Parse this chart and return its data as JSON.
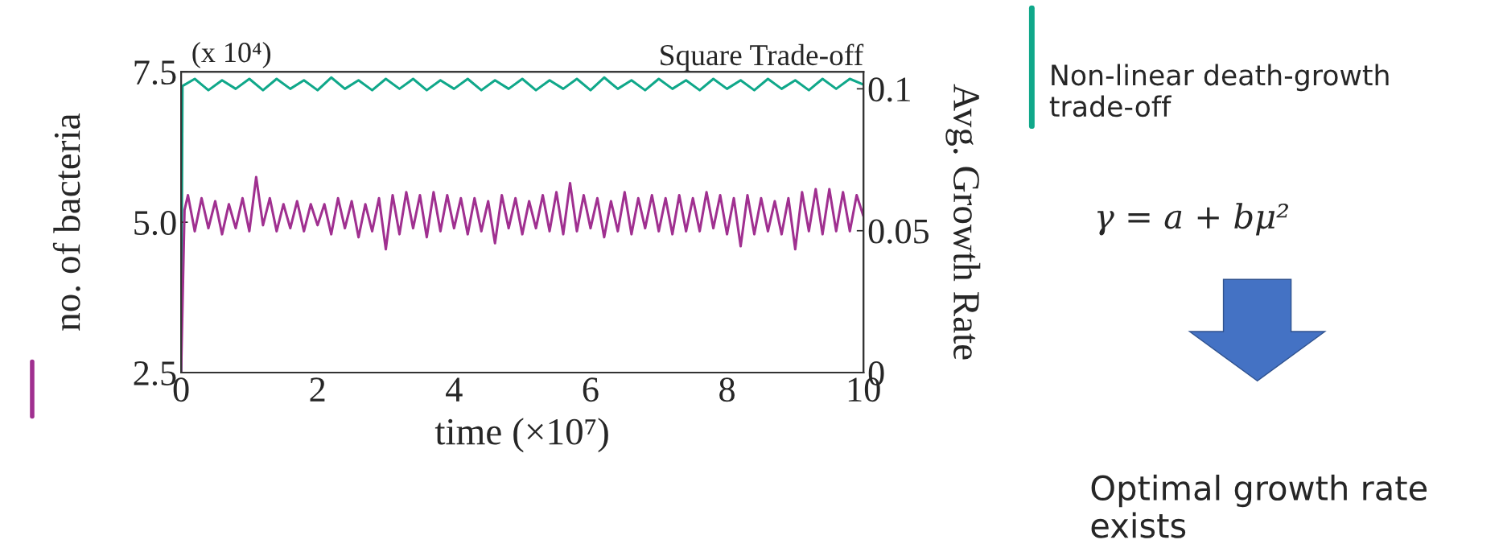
{
  "chart_data": {
    "type": "line",
    "title": "Square Trade-off",
    "xlabel": "time (×10⁷)",
    "ylabel": "no. of bacteria",
    "y2label": "Avg. Growth Rate",
    "annotations": [
      "(x 10⁴)",
      "Non-linear death-growth trade-off",
      "γ = a + bμ²",
      "Optimal growth rate exists"
    ],
    "xlim": [
      0,
      10
    ],
    "xticks": [
      0,
      2,
      4,
      6,
      8,
      10
    ],
    "ylim": [
      2.5,
      7.5
    ],
    "yticks": [
      2.5,
      {
        "value": 5,
        "label": "5.0"
      },
      7.5
    ],
    "y2lim": [
      0,
      0.106
    ],
    "y2ticks": [
      0,
      0.05,
      0.1
    ],
    "grid": false,
    "legend": false,
    "marker": "none",
    "line_style": "solid",
    "series": [
      {
        "color": "#a03090",
        "axis": "y",
        "x": [
          0,
          0.05,
          0.1,
          0.2,
          0.3,
          0.4,
          0.5,
          0.6,
          0.7,
          0.8,
          0.9,
          1.0,
          1.1,
          1.2,
          1.3,
          1.4,
          1.5,
          1.6,
          1.7,
          1.8,
          1.9,
          2.0,
          2.1,
          2.2,
          2.3,
          2.4,
          2.5,
          2.6,
          2.7,
          2.8,
          2.9,
          3.0,
          3.1,
          3.2,
          3.3,
          3.4,
          3.5,
          3.6,
          3.7,
          3.8,
          3.9,
          4.0,
          4.1,
          4.2,
          4.3,
          4.4,
          4.5,
          4.6,
          4.7,
          4.8,
          4.9,
          5.0,
          5.1,
          5.2,
          5.3,
          5.4,
          5.5,
          5.6,
          5.7,
          5.8,
          5.9,
          6.0,
          6.1,
          6.2,
          6.3,
          6.4,
          6.5,
          6.6,
          6.7,
          6.8,
          6.9,
          7.0,
          7.1,
          7.2,
          7.3,
          7.4,
          7.5,
          7.6,
          7.7,
          7.8,
          7.9,
          8.0,
          8.1,
          8.2,
          8.3,
          8.4,
          8.5,
          8.6,
          8.7,
          8.8,
          8.9,
          9.0,
          9.1,
          9.2,
          9.3,
          9.4,
          9.5,
          9.6,
          9.7,
          9.8,
          9.9,
          10.0
        ],
        "values": [
          2.5,
          5.2,
          5.45,
          4.85,
          5.4,
          4.9,
          5.35,
          4.8,
          5.3,
          4.9,
          5.4,
          4.85,
          5.75,
          4.95,
          5.4,
          4.85,
          5.3,
          4.9,
          5.35,
          4.85,
          5.3,
          4.95,
          5.3,
          4.8,
          5.4,
          4.9,
          5.35,
          4.75,
          5.3,
          4.85,
          5.4,
          4.55,
          5.45,
          4.8,
          5.5,
          4.9,
          5.45,
          4.75,
          5.5,
          4.85,
          5.45,
          4.9,
          5.4,
          4.8,
          5.4,
          4.85,
          5.35,
          4.65,
          5.45,
          4.9,
          5.4,
          4.8,
          5.35,
          4.9,
          5.45,
          4.85,
          5.5,
          4.8,
          5.65,
          4.85,
          5.45,
          4.9,
          5.4,
          4.75,
          5.35,
          4.85,
          5.5,
          4.8,
          5.4,
          4.9,
          5.45,
          4.85,
          5.4,
          4.8,
          5.45,
          4.85,
          5.4,
          4.85,
          5.5,
          4.9,
          5.45,
          4.8,
          5.4,
          4.6,
          5.45,
          4.8,
          5.4,
          4.85,
          5.35,
          4.8,
          5.4,
          4.55,
          5.5,
          4.85,
          5.55,
          4.8,
          5.55,
          4.85,
          5.5,
          4.85,
          5.45,
          5.1
        ]
      },
      {
        "color": "#10a88a",
        "axis": "y2",
        "x": [
          0,
          0.02,
          0.2,
          0.4,
          0.6,
          0.8,
          1.0,
          1.2,
          1.4,
          1.6,
          1.8,
          2.0,
          2.2,
          2.4,
          2.6,
          2.8,
          3.0,
          3.2,
          3.4,
          3.6,
          3.8,
          4.0,
          4.2,
          4.4,
          4.6,
          4.8,
          5.0,
          5.2,
          5.4,
          5.6,
          5.8,
          6.0,
          6.2,
          6.4,
          6.6,
          6.8,
          7.0,
          7.2,
          7.4,
          7.6,
          7.8,
          8.0,
          8.2,
          8.4,
          8.6,
          8.8,
          9.0,
          9.2,
          9.4,
          9.6,
          9.8,
          10.0
        ],
        "values": [
          0,
          0.101,
          0.1035,
          0.0995,
          0.103,
          0.1,
          0.1035,
          0.0995,
          0.1035,
          0.1,
          0.103,
          0.0995,
          0.104,
          0.1,
          0.103,
          0.0995,
          0.1035,
          0.1,
          0.1035,
          0.0995,
          0.103,
          0.1,
          0.1035,
          0.0995,
          0.103,
          0.1,
          0.1035,
          0.0995,
          0.103,
          0.1,
          0.1035,
          0.0995,
          0.104,
          0.1,
          0.103,
          0.0995,
          0.1035,
          0.1,
          0.103,
          0.0995,
          0.1035,
          0.1,
          0.103,
          0.0995,
          0.1035,
          0.1,
          0.103,
          0.0995,
          0.1035,
          0.1,
          0.1035,
          0.1015
        ]
      }
    ]
  }
}
